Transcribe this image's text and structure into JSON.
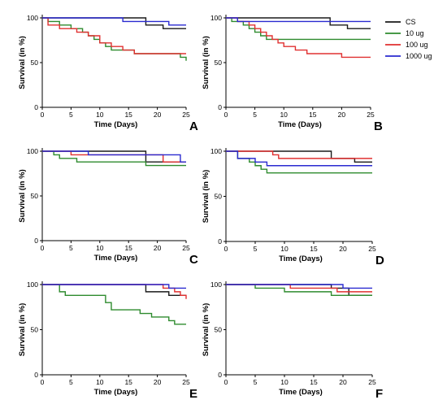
{
  "legend": {
    "placement": "top-right",
    "entries": [
      {
        "label": "CS",
        "color": "#1a1a1a"
      },
      {
        "label": "10 ug",
        "color": "#2e8b2e"
      },
      {
        "label": "100 ug",
        "color": "#e03030"
      },
      {
        "label": "1000 ug",
        "color": "#2a2ad0"
      }
    ]
  },
  "chart_data": [
    {
      "panel": "A",
      "type": "line",
      "step": true,
      "xlabel": "Time (Days)",
      "ylabel": "Survival (in %)",
      "xlim": [
        0,
        25
      ],
      "ylim": [
        0,
        100
      ],
      "xticks": [
        "0",
        "5",
        "10",
        "15",
        "20",
        "25"
      ],
      "yticks": [
        "0",
        "50",
        "100"
      ],
      "series": [
        {
          "name": "CS",
          "color": "#1a1a1a",
          "x": [
            0,
            18,
            21,
            25
          ],
          "y": [
            100,
            92,
            88,
            88
          ]
        },
        {
          "name": "10 ug",
          "color": "#2e8b2e",
          "x": [
            0,
            1,
            3,
            5,
            7,
            8,
            9,
            10,
            11,
            12,
            13,
            16,
            24,
            25
          ],
          "y": [
            100,
            96,
            92,
            88,
            84,
            80,
            76,
            72,
            68,
            64,
            64,
            60,
            56,
            52
          ]
        },
        {
          "name": "100 ug",
          "color": "#e03030",
          "x": [
            0,
            1,
            3,
            6,
            8,
            10,
            12,
            14,
            16,
            25
          ],
          "y": [
            100,
            92,
            88,
            84,
            80,
            72,
            68,
            64,
            60,
            60
          ]
        },
        {
          "name": "1000 ug",
          "color": "#2a2ad0",
          "x": [
            0,
            14,
            22,
            25
          ],
          "y": [
            100,
            96,
            92,
            92
          ]
        }
      ]
    },
    {
      "panel": "B",
      "type": "line",
      "step": true,
      "xlabel": "Time (Days)",
      "ylabel": "Survival (in %)",
      "xlim": [
        0,
        25
      ],
      "ylim": [
        0,
        100
      ],
      "xticks": [
        "0",
        "5",
        "10",
        "15",
        "20",
        "25"
      ],
      "yticks": [
        "0",
        "50",
        "100"
      ],
      "series": [
        {
          "name": "CS",
          "color": "#1a1a1a",
          "x": [
            0,
            18,
            21,
            25
          ],
          "y": [
            100,
            92,
            88,
            88
          ]
        },
        {
          "name": "10 ug",
          "color": "#2e8b2e",
          "x": [
            0,
            1,
            3,
            4,
            5,
            6,
            7,
            8,
            25
          ],
          "y": [
            100,
            96,
            92,
            88,
            84,
            80,
            76,
            76,
            76
          ]
        },
        {
          "name": "100 ug",
          "color": "#e03030",
          "x": [
            0,
            2,
            4,
            5,
            6,
            7,
            8,
            9,
            10,
            12,
            14,
            20,
            25
          ],
          "y": [
            100,
            96,
            92,
            88,
            84,
            80,
            76,
            72,
            68,
            64,
            60,
            56,
            56
          ]
        },
        {
          "name": "1000 ug",
          "color": "#2a2ad0",
          "x": [
            0,
            2,
            25
          ],
          "y": [
            100,
            96,
            96
          ]
        }
      ]
    },
    {
      "panel": "C",
      "type": "line",
      "step": true,
      "xlabel": "Time (Days)",
      "ylabel": "Survival (in %)",
      "xlim": [
        0,
        25
      ],
      "ylim": [
        0,
        100
      ],
      "xticks": [
        "0",
        "5",
        "10",
        "15",
        "20",
        "25"
      ],
      "yticks": [
        "0",
        "50",
        "100"
      ],
      "series": [
        {
          "name": "CS",
          "color": "#1a1a1a",
          "x": [
            0,
            18,
            25
          ],
          "y": [
            100,
            88,
            88
          ]
        },
        {
          "name": "10 ug",
          "color": "#2e8b2e",
          "x": [
            0,
            2,
            3,
            6,
            18,
            25
          ],
          "y": [
            100,
            96,
            92,
            88,
            84,
            84
          ]
        },
        {
          "name": "100 ug",
          "color": "#e03030",
          "x": [
            0,
            5,
            21,
            25
          ],
          "y": [
            100,
            96,
            88,
            88
          ]
        },
        {
          "name": "1000 ug",
          "color": "#2a2ad0",
          "x": [
            0,
            8,
            24,
            25
          ],
          "y": [
            100,
            96,
            88,
            88
          ]
        }
      ]
    },
    {
      "panel": "D",
      "type": "line",
      "step": true,
      "xlabel": "Time (Days)",
      "ylabel": "Survival (in %)",
      "xlim": [
        0,
        25
      ],
      "ylim": [
        0,
        100
      ],
      "xticks": [
        "0",
        "5",
        "10",
        "15",
        "20",
        "25"
      ],
      "yticks": [
        "0",
        "50",
        "100"
      ],
      "series": [
        {
          "name": "CS",
          "color": "#1a1a1a",
          "x": [
            0,
            18,
            22,
            25
          ],
          "y": [
            100,
            92,
            88,
            88
          ]
        },
        {
          "name": "10 ug",
          "color": "#2e8b2e",
          "x": [
            0,
            2,
            4,
            5,
            6,
            7,
            25
          ],
          "y": [
            100,
            92,
            88,
            84,
            80,
            76,
            76
          ]
        },
        {
          "name": "100 ug",
          "color": "#e03030",
          "x": [
            0,
            8,
            9,
            18,
            25
          ],
          "y": [
            100,
            96,
            92,
            92,
            92
          ]
        },
        {
          "name": "1000 ug",
          "color": "#2a2ad0",
          "x": [
            0,
            2,
            5,
            7,
            25
          ],
          "y": [
            100,
            92,
            88,
            84,
            84
          ]
        }
      ]
    },
    {
      "panel": "E",
      "type": "line",
      "step": true,
      "xlabel": "Time (Days)",
      "ylabel": "Survival (in %)",
      "xlim": [
        0,
        25
      ],
      "ylim": [
        0,
        100
      ],
      "xticks": [
        "0",
        "5",
        "10",
        "15",
        "20",
        "25"
      ],
      "yticks": [
        "0",
        "50",
        "100"
      ],
      "series": [
        {
          "name": "CS",
          "color": "#1a1a1a",
          "x": [
            0,
            18,
            22,
            25
          ],
          "y": [
            100,
            92,
            88,
            88
          ]
        },
        {
          "name": "10 ug",
          "color": "#2e8b2e",
          "x": [
            0,
            3,
            4,
            11,
            12,
            17,
            19,
            20,
            22,
            23,
            24,
            25
          ],
          "y": [
            100,
            92,
            88,
            80,
            72,
            68,
            64,
            64,
            60,
            56,
            56,
            56
          ]
        },
        {
          "name": "100 ug",
          "color": "#e03030",
          "x": [
            0,
            21,
            23,
            24,
            25
          ],
          "y": [
            100,
            96,
            92,
            88,
            84
          ]
        },
        {
          "name": "1000 ug",
          "color": "#2a2ad0",
          "x": [
            0,
            22,
            25
          ],
          "y": [
            100,
            96,
            96
          ]
        }
      ]
    },
    {
      "panel": "F",
      "type": "line",
      "step": true,
      "xlabel": "Time (Days)",
      "ylabel": "Survival (in %)",
      "xlim": [
        0,
        25
      ],
      "ylim": [
        0,
        100
      ],
      "xticks": [
        "0",
        "5",
        "10",
        "15",
        "20",
        "25"
      ],
      "yticks": [
        "0",
        "50",
        "100"
      ],
      "series": [
        {
          "name": "CS",
          "color": "#1a1a1a",
          "x": [
            0,
            18,
            21,
            25
          ],
          "y": [
            100,
            96,
            88,
            88
          ]
        },
        {
          "name": "10 ug",
          "color": "#2e8b2e",
          "x": [
            0,
            5,
            10,
            18,
            25
          ],
          "y": [
            100,
            96,
            92,
            88,
            88
          ]
        },
        {
          "name": "100 ug",
          "color": "#e03030",
          "x": [
            0,
            11,
            19,
            25
          ],
          "y": [
            100,
            96,
            92,
            92
          ]
        },
        {
          "name": "1000 ug",
          "color": "#2a2ad0",
          "x": [
            0,
            20,
            25
          ],
          "y": [
            100,
            96,
            96
          ]
        }
      ]
    }
  ]
}
